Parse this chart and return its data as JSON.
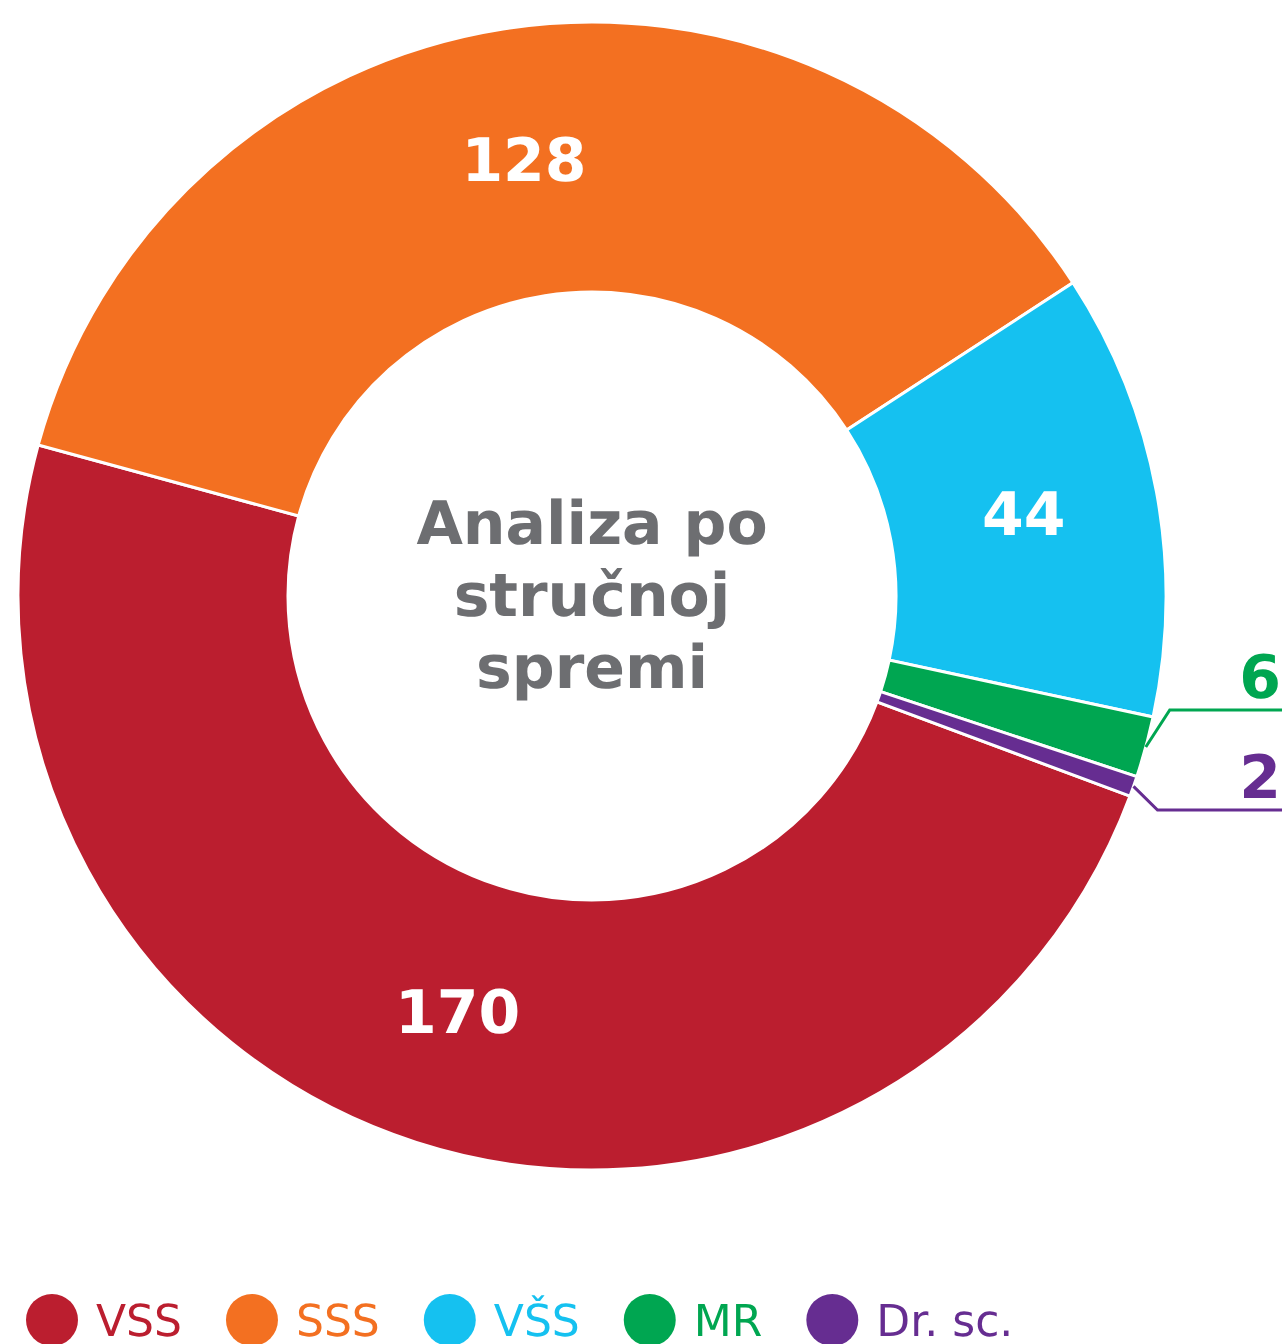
{
  "chart_data": {
    "type": "donut",
    "title": "Analiza po stručnoj spremi",
    "categories": [
      "VSS",
      "SSS",
      "VŠS",
      "MR",
      "Dr. sc."
    ],
    "values": [
      170,
      128,
      44,
      6,
      2
    ],
    "colors": [
      "#bb1e2f",
      "#f37021",
      "#15c1f0",
      "#00a651",
      "#662d91"
    ],
    "data_labels": true,
    "legend": "bottom"
  }
}
